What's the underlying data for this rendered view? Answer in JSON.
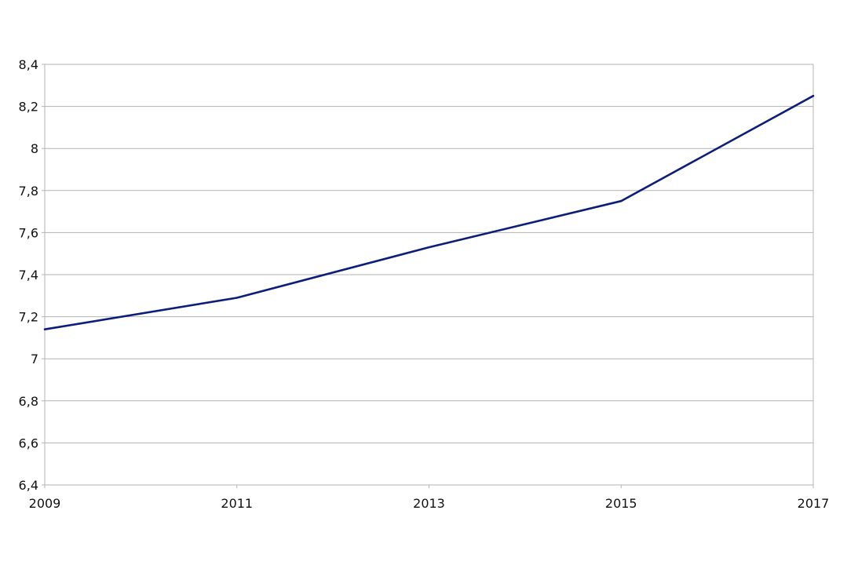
{
  "chart_data": {
    "type": "line",
    "title": "",
    "xlabel": "",
    "ylabel": "",
    "x": [
      2009,
      2011,
      2013,
      2015,
      2017
    ],
    "x_tick_labels": [
      "2009",
      "2011",
      "2013",
      "2015",
      "2017"
    ],
    "y_tick_labels": [
      "8,4",
      "8,2",
      "8",
      "7,8",
      "7,6",
      "7,4",
      "7,2",
      "7",
      "6,8",
      "6,6",
      "6,4"
    ],
    "y_ticks": [
      8.4,
      8.2,
      8.0,
      7.8,
      7.6,
      7.4,
      7.2,
      7.0,
      6.8,
      6.6,
      6.4
    ],
    "ylim": [
      6.4,
      8.4
    ],
    "xlim": [
      2009,
      2017
    ],
    "grid": true,
    "legend": "none",
    "series": [
      {
        "values": [
          7.14,
          7.29,
          7.53,
          7.75,
          8.25
        ],
        "color": "#0d1e7a"
      }
    ],
    "colors": {
      "grid": "#b3b3b3",
      "text": "#111111",
      "background": "#ffffff"
    }
  }
}
